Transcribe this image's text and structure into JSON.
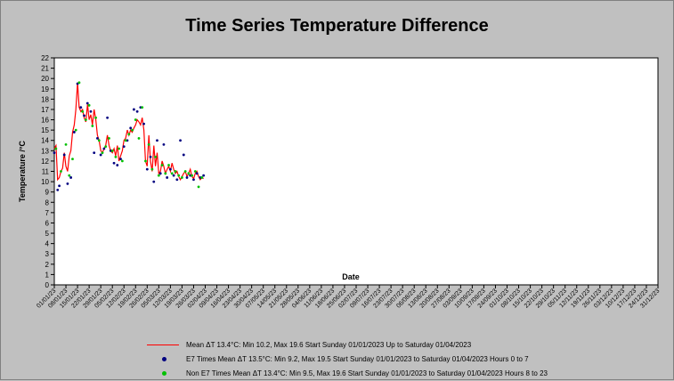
{
  "chart_data": {
    "type": "line",
    "title": "Time Series Temperature Difference",
    "xlabel": "Date",
    "ylabel": "Temperature /°C",
    "ylim": [
      0,
      22
    ],
    "y_ticks": [
      0,
      1,
      2,
      3,
      4,
      5,
      6,
      7,
      8,
      9,
      10,
      11,
      12,
      13,
      14,
      15,
      16,
      17,
      18,
      19,
      20,
      21,
      22
    ],
    "x_tick_labels": [
      "01/01/23",
      "08/01/23",
      "15/01/23",
      "22/01/23",
      "29/01/23",
      "05/02/23",
      "12/02/23",
      "19/02/23",
      "26/02/23",
      "05/03/23",
      "12/03/23",
      "19/03/23",
      "26/03/23",
      "02/04/23",
      "09/04/23",
      "16/04/23",
      "23/04/23",
      "30/04/23",
      "07/05/23",
      "14/05/23",
      "21/05/23",
      "28/05/23",
      "04/06/23",
      "11/06/23",
      "18/06/23",
      "25/06/23",
      "02/07/23",
      "09/07/23",
      "16/07/23",
      "23/07/23",
      "30/07/23",
      "06/08/23",
      "13/08/23",
      "20/08/23",
      "27/08/23",
      "03/09/23",
      "10/09/23",
      "17/09/23",
      "24/09/23",
      "01/10/23",
      "08/10/23",
      "15/10/23",
      "22/10/23",
      "29/10/23",
      "05/11/23",
      "12/11/23",
      "19/11/23",
      "26/11/23",
      "03/12/23",
      "10/12/23",
      "17/12/23",
      "24/12/23",
      "31/12/23"
    ],
    "grid": false,
    "legend_position": "bottom",
    "series": [
      {
        "name": "Mean ΔT 13.4°C: Min 10.2, Max 19.6 Start Sunday 01/01/2023 Up to Saturday 01/04/2023",
        "color": "#ff0000",
        "marker": "line",
        "x": [
          "01/01/23",
          "02/01/23",
          "03/01/23",
          "04/01/23",
          "05/01/23",
          "06/01/23",
          "07/01/23",
          "08/01/23",
          "09/01/23",
          "10/01/23",
          "11/01/23",
          "12/01/23",
          "13/01/23",
          "14/01/23",
          "15/01/23",
          "16/01/23",
          "17/01/23",
          "18/01/23",
          "19/01/23",
          "20/01/23",
          "21/01/23",
          "22/01/23",
          "23/01/23",
          "24/01/23",
          "25/01/23",
          "26/01/23",
          "27/01/23",
          "28/01/23",
          "29/01/23",
          "30/01/23",
          "31/01/23",
          "01/02/23",
          "02/02/23",
          "03/02/23",
          "04/02/23",
          "05/02/23",
          "06/02/23",
          "07/02/23",
          "08/02/23",
          "09/02/23",
          "10/02/23",
          "11/02/23",
          "12/02/23",
          "13/02/23",
          "14/02/23",
          "15/02/23",
          "16/02/23",
          "17/02/23",
          "18/02/23",
          "19/02/23",
          "20/02/23",
          "21/02/23",
          "22/02/23",
          "23/02/23",
          "24/02/23",
          "25/02/23",
          "26/02/23",
          "27/02/23",
          "28/02/23",
          "01/03/23",
          "02/03/23",
          "03/03/23",
          "04/03/23",
          "05/03/23",
          "06/03/23",
          "07/03/23",
          "08/03/23",
          "09/03/23",
          "10/03/23",
          "11/03/23",
          "12/03/23",
          "13/03/23",
          "14/03/23",
          "15/03/23",
          "16/03/23",
          "17/03/23",
          "18/03/23",
          "19/03/23",
          "20/03/23",
          "21/03/23",
          "22/03/23",
          "23/03/23",
          "24/03/23",
          "25/03/23",
          "26/03/23",
          "27/03/23",
          "28/03/23",
          "29/03/23",
          "30/03/23",
          "31/03/23",
          "01/04/23"
        ],
        "values": [
          13.2,
          13.5,
          10.2,
          10.4,
          11.0,
          11.3,
          12.8,
          11.5,
          11.0,
          12.5,
          13.0,
          14.8,
          15.5,
          17.0,
          19.6,
          17.2,
          16.8,
          17.0,
          16.2,
          15.8,
          17.5,
          16.0,
          16.5,
          15.5,
          17.0,
          16.0,
          14.5,
          14.0,
          13.0,
          12.8,
          13.2,
          13.5,
          14.5,
          13.5,
          13.0,
          12.8,
          13.2,
          12.5,
          13.5,
          12.0,
          12.5,
          13.0,
          14.0,
          14.2,
          15.0,
          14.5,
          15.0,
          14.8,
          15.2,
          15.5,
          16.0,
          15.8,
          15.5,
          16.2,
          15.0,
          12.0,
          11.5,
          14.5,
          12.0,
          11.0,
          13.5,
          11.5,
          12.8,
          10.8,
          11.0,
          12.0,
          11.5,
          10.8,
          11.2,
          11.5,
          11.0,
          11.8,
          11.2,
          10.8,
          11.0,
          10.5,
          10.2,
          10.5,
          10.8,
          11.0,
          10.5,
          10.8,
          11.2,
          10.5,
          10.3,
          10.8,
          11.0,
          10.5,
          10.2,
          10.4,
          10.3
        ]
      },
      {
        "name": "E7 Times Mean ΔT 13.5°C: Min 9.2, Max 19.5 Start Sunday 01/01/2023 to Saturday 01/04/2023 Hours 0 to 7",
        "color": "#000080",
        "marker": "dot",
        "x": [
          "01/01/23",
          "03/01/23",
          "04/01/23",
          "07/01/23",
          "09/01/23",
          "11/01/23",
          "13/01/23",
          "15/01/23",
          "17/01/23",
          "19/01/23",
          "21/01/23",
          "23/01/23",
          "25/01/23",
          "27/01/23",
          "29/01/23",
          "31/01/23",
          "02/02/23",
          "04/02/23",
          "06/02/23",
          "08/02/23",
          "10/02/23",
          "12/02/23",
          "14/02/23",
          "16/02/23",
          "18/02/23",
          "20/02/23",
          "22/02/23",
          "24/02/23",
          "26/02/23",
          "28/02/23",
          "02/03/23",
          "04/03/23",
          "06/03/23",
          "08/03/23",
          "10/03/23",
          "12/03/23",
          "14/03/23",
          "16/03/23",
          "18/03/23",
          "20/03/23",
          "22/03/23",
          "24/03/23",
          "26/03/23",
          "28/03/23",
          "30/03/23",
          "01/04/23"
        ],
        "values": [
          12.8,
          9.2,
          9.6,
          12.6,
          9.8,
          10.4,
          14.8,
          19.5,
          17.2,
          16.4,
          17.6,
          16.8,
          12.8,
          14.2,
          12.6,
          13.2,
          16.2,
          13.0,
          11.8,
          11.6,
          12.2,
          13.4,
          14.0,
          15.2,
          17.0,
          16.8,
          17.2,
          15.6,
          11.2,
          12.4,
          10.0,
          14.0,
          10.8,
          13.6,
          10.4,
          11.2,
          10.6,
          10.2,
          14.0,
          12.6,
          10.4,
          10.6,
          10.2,
          10.8,
          10.4,
          10.6
        ]
      },
      {
        "name": "Non E7 Times Mean ΔT 13.4°C: Min 9.5, Max 19.6 Start Sunday 01/01/2023 to Saturday 01/04/2023 Hours 8 to 23",
        "color": "#00c000",
        "marker": "dot",
        "x": [
          "02/01/23",
          "05/01/23",
          "08/01/23",
          "10/01/23",
          "12/01/23",
          "14/01/23",
          "16/01/23",
          "18/01/23",
          "20/01/23",
          "22/01/23",
          "24/01/23",
          "26/01/23",
          "28/01/23",
          "30/01/23",
          "01/02/23",
          "03/02/23",
          "05/02/23",
          "07/02/23",
          "09/02/23",
          "11/02/23",
          "13/02/23",
          "15/02/23",
          "17/02/23",
          "19/02/23",
          "21/02/23",
          "23/02/23",
          "25/02/23",
          "27/02/23",
          "01/03/23",
          "03/03/23",
          "05/03/23",
          "07/03/23",
          "09/03/23",
          "11/03/23",
          "13/03/23",
          "15/03/23",
          "17/03/23",
          "19/03/23",
          "21/03/23",
          "23/03/23",
          "25/03/23",
          "27/03/23",
          "29/03/23",
          "31/03/23"
        ],
        "values": [
          13.2,
          11.0,
          13.6,
          10.6,
          12.2,
          15.0,
          19.6,
          16.8,
          16.0,
          17.4,
          15.4,
          16.2,
          14.0,
          12.8,
          13.4,
          14.2,
          13.0,
          12.4,
          13.2,
          12.0,
          14.0,
          14.6,
          15.0,
          16.0,
          14.2,
          17.2,
          12.0,
          13.6,
          11.2,
          12.4,
          10.6,
          11.6,
          10.8,
          11.6,
          10.8,
          11.0,
          10.6,
          10.4,
          11.0,
          10.8,
          10.6,
          11.0,
          9.5,
          10.4
        ]
      }
    ]
  }
}
